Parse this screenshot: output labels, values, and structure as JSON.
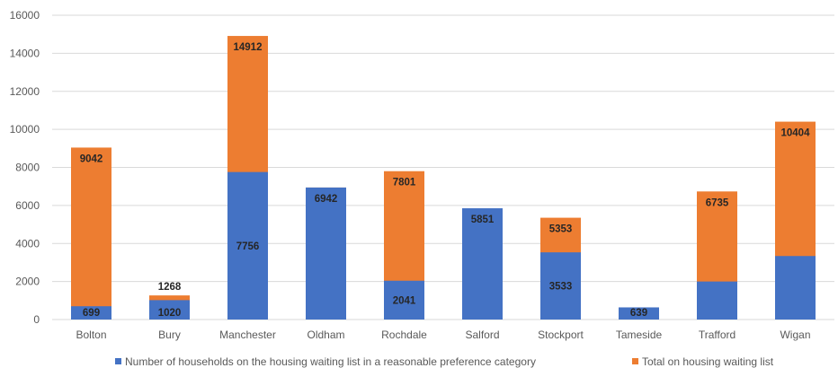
{
  "chart_data": {
    "type": "bar",
    "stacked": false,
    "overlapping": true,
    "title": "",
    "xlabel": "",
    "ylabel": "",
    "ylim": [
      0,
      16000
    ],
    "y_ticks": [
      0,
      2000,
      4000,
      6000,
      8000,
      10000,
      12000,
      14000,
      16000
    ],
    "y_tick_labels": [
      "0",
      "2000",
      "4000",
      "6000",
      "8000",
      "10000",
      "12000",
      "14000",
      "16000"
    ],
    "grid": true,
    "legend_position": "bottom",
    "categories": [
      "Bolton",
      "Bury",
      "Manchester",
      "Oldham",
      "Rochdale",
      "Salford",
      "Stockport",
      "Tameside",
      "Trafford",
      "Wigan"
    ],
    "series": [
      {
        "name": "Number of households on the housing waiting list in a reasonable preference category",
        "color": "#4472c4",
        "values": [
          699,
          1020,
          7756,
          6942,
          2041,
          5851,
          3533,
          639,
          2000,
          3340
        ],
        "labels": [
          "699",
          "1020",
          "7756",
          "6942",
          "2041",
          "5851",
          "3533",
          "639",
          "",
          ""
        ]
      },
      {
        "name": "Total on housing waiting list",
        "color": "#ed7d31",
        "values": [
          9042,
          1268,
          14912,
          6942,
          7801,
          null,
          5353,
          null,
          6735,
          10404
        ],
        "labels": [
          "9042",
          "1268",
          "14912",
          "",
          "7801",
          "",
          "5353",
          "",
          "6735",
          "10404"
        ]
      }
    ]
  }
}
